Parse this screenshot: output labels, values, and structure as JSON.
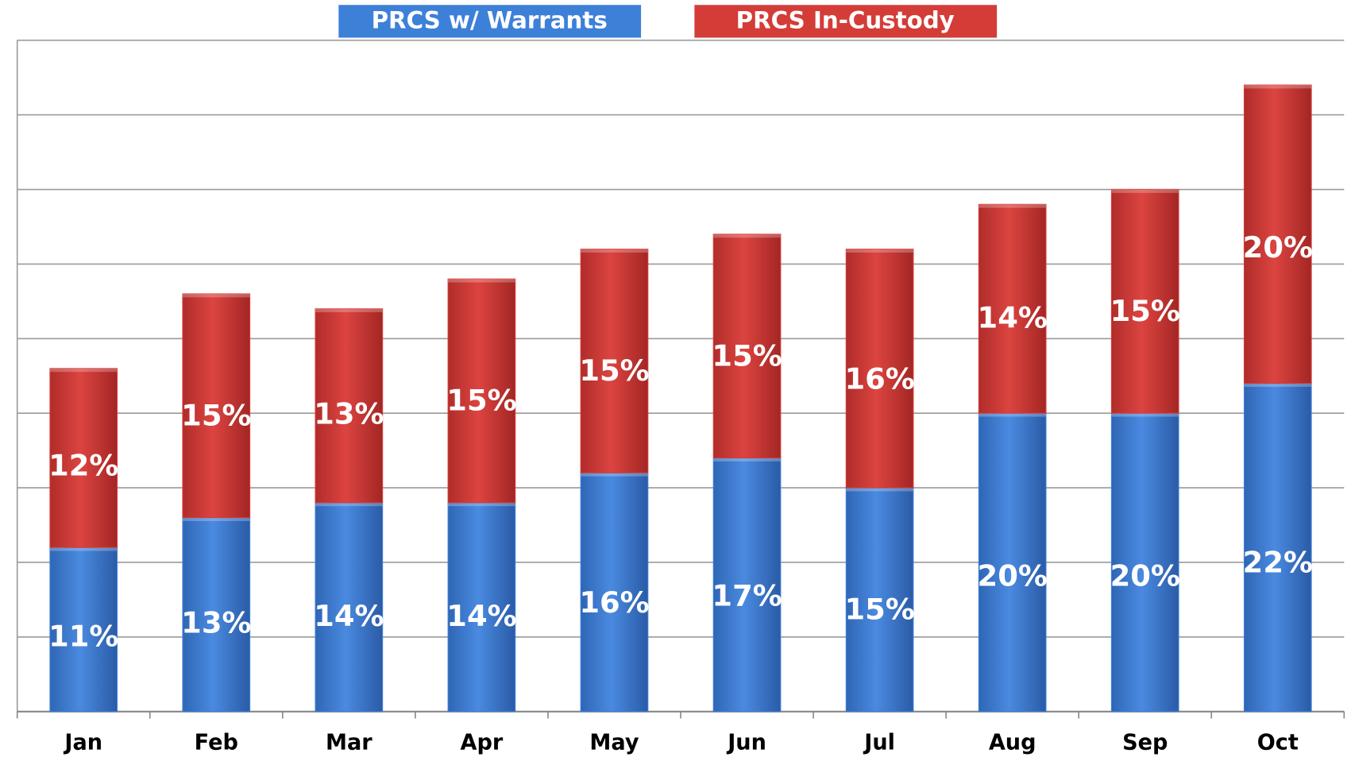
{
  "chart_data": {
    "type": "stacked_bar",
    "categories": [
      "Jan",
      "Feb",
      "Mar",
      "Apr",
      "May",
      "Jun",
      "Jul",
      "Aug",
      "Sep",
      "Oct"
    ],
    "series": [
      {
        "name": "PRCS w/ Warrants",
        "color": "#3d80d8",
        "values": [
          11,
          13,
          14,
          14,
          16,
          17,
          15,
          20,
          20,
          22
        ],
        "value_labels": [
          "11%",
          "13%",
          "14%",
          "14%",
          "16%",
          "17%",
          "15%",
          "20%",
          "20%",
          "22%"
        ]
      },
      {
        "name": "PRCS In-Custody",
        "color": "#d43c38",
        "values": [
          12,
          15,
          13,
          15,
          15,
          15,
          16,
          14,
          15,
          20
        ],
        "value_labels": [
          "12%",
          "15%",
          "13%",
          "15%",
          "15%",
          "15%",
          "16%",
          "14%",
          "15%",
          "20%"
        ]
      }
    ],
    "ylim": [
      0,
      45
    ],
    "yticks": [
      0,
      5,
      10,
      15,
      20,
      25,
      30,
      35,
      40,
      45
    ],
    "grid": true,
    "legend": "top"
  }
}
